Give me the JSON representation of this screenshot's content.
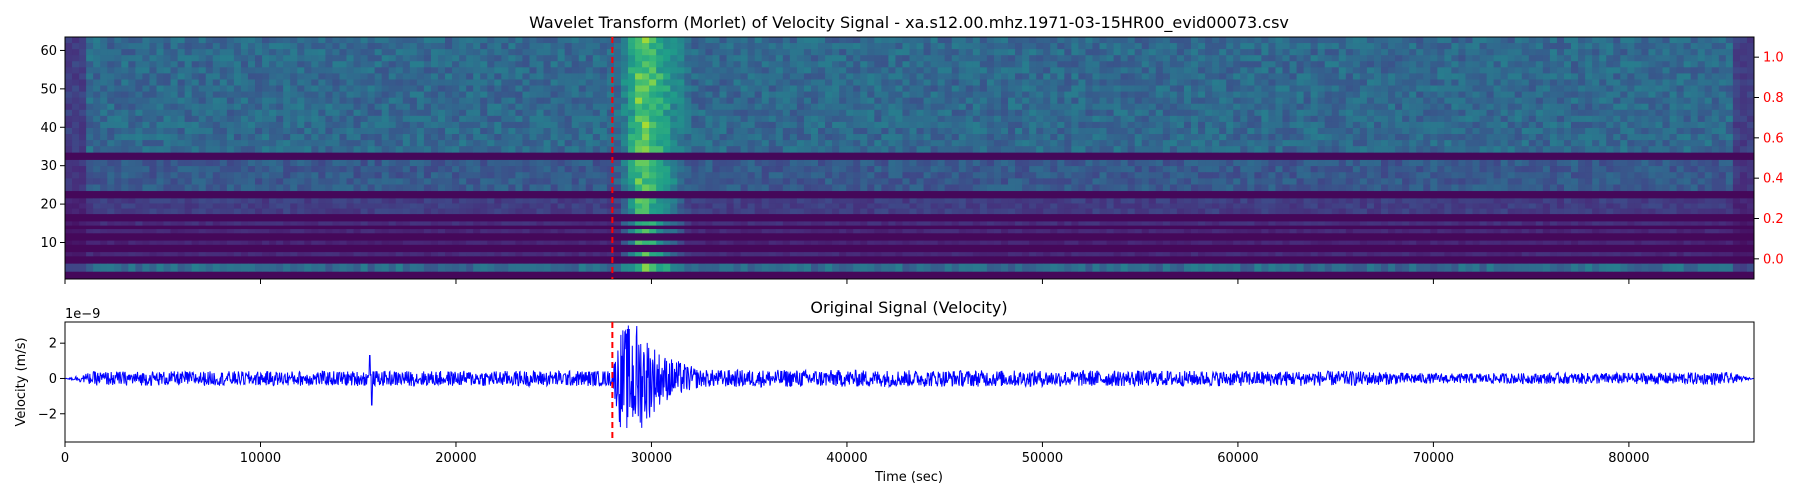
{
  "chart_data": [
    {
      "type": "heatmap",
      "title": "Wavelet Transform (Morlet) of Velocity Signal - xa.s12.00.mhz.1971-03-15HR00_evid00073.csv",
      "x_range": [
        0,
        86400
      ],
      "ylim": [
        0.5,
        63.5
      ],
      "y_ticks": [
        10,
        20,
        30,
        40,
        50,
        60
      ],
      "secondary_y_ticks": [
        "0.0",
        "0.2",
        "0.4",
        "0.6",
        "0.8",
        "1.0"
      ],
      "secondary_ylim": [
        -0.1,
        1.1
      ],
      "secondary_tick_color": "#ff0000",
      "colormap": "viridis",
      "event_marker_x": 28000,
      "event_marker_color": "#ff0000",
      "bands": [
        {
          "y": [
            2.5,
            4.5
          ],
          "level": 0.35
        },
        {
          "y": [
            6.5,
            7.5
          ],
          "level": 0.12
        },
        {
          "y": [
            9.5,
            10.5
          ],
          "level": 0.1
        },
        {
          "y": [
            12.5,
            13.5
          ],
          "level": 0.11
        },
        {
          "y": [
            14.5,
            15.5
          ],
          "level": 0.13
        },
        {
          "y": [
            17.5,
            21.5
          ],
          "level": 0.18
        },
        {
          "y": [
            23.5,
            31.5
          ],
          "level": 0.28
        },
        {
          "y": [
            33.5,
            63.5
          ],
          "level": 0.34
        }
      ],
      "event_energy": {
        "x_start": 28300,
        "x_peak": 29500,
        "x_end": 32000,
        "peak_level": 0.85
      }
    },
    {
      "type": "line",
      "title": "Original Signal (Velocity)",
      "xlabel": "Time (sec)",
      "ylabel": "Velocity (m/s)",
      "y_scale_label": "1e−9",
      "x_ticks": [
        0,
        10000,
        20000,
        30000,
        40000,
        50000,
        60000,
        70000,
        80000
      ],
      "y_ticks": [
        -2,
        0,
        2
      ],
      "xlim": [
        0,
        86400
      ],
      "ylim": [
        -3.6,
        3.2
      ],
      "line_color": "#0000ff",
      "event_marker_x": 28000,
      "event_marker_color": "#ff0000",
      "noise_envelope": [
        {
          "x": 0,
          "amp": 0.0
        },
        {
          "x": 1500,
          "amp": 0.4
        },
        {
          "x": 28000,
          "amp": 0.45
        },
        {
          "x": 28400,
          "amp": 2.8
        },
        {
          "x": 29200,
          "amp": 3.3
        },
        {
          "x": 30500,
          "amp": 1.4
        },
        {
          "x": 32500,
          "amp": 0.5
        },
        {
          "x": 66000,
          "amp": 0.42
        },
        {
          "x": 70000,
          "amp": 0.28
        },
        {
          "x": 85000,
          "amp": 0.35
        },
        {
          "x": 86400,
          "amp": 0.0
        }
      ],
      "spikes": [
        {
          "x": 15600,
          "amp": 1.3
        },
        {
          "x": 15700,
          "amp": -1.5
        }
      ]
    }
  ]
}
